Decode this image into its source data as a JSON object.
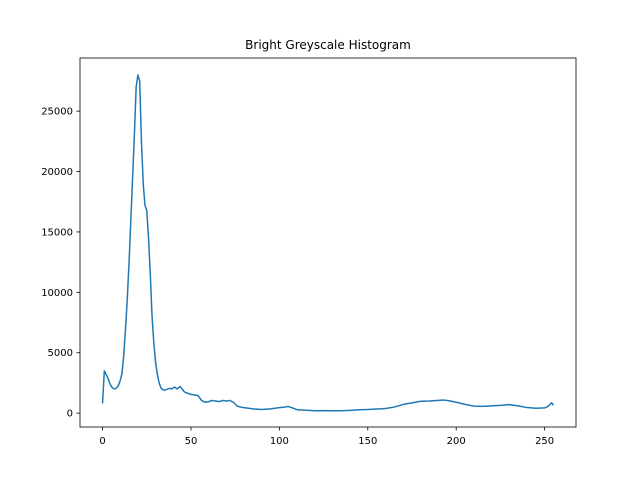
{
  "chart_data": {
    "type": "line",
    "title": "Bright Greyscale Histogram",
    "xlabel": "",
    "ylabel": "",
    "xlim": [
      -12.75,
      267.75
    ],
    "ylim": [
      -1150,
      29400
    ],
    "xticks": [
      0,
      50,
      100,
      150,
      200,
      250
    ],
    "yticks": [
      0,
      5000,
      10000,
      15000,
      20000,
      25000
    ],
    "grid": false,
    "legend": "none",
    "colors": {
      "line": "#1f77b4",
      "axes": "#000000",
      "background": "#ffffff"
    },
    "series": [
      {
        "x": [
          0,
          1,
          2,
          3,
          4,
          5,
          6,
          7,
          8,
          9,
          10,
          11,
          12,
          13,
          14,
          15,
          16,
          17,
          18,
          19,
          20,
          21,
          22,
          23,
          24,
          25,
          26,
          27,
          28,
          29,
          30,
          31,
          32,
          33,
          34,
          35,
          36,
          37,
          38,
          39,
          40,
          41,
          42,
          43,
          44,
          45,
          46,
          47,
          48,
          49,
          50,
          52,
          54,
          56,
          58,
          60,
          62,
          64,
          66,
          68,
          70,
          72,
          74,
          76,
          78,
          80,
          85,
          90,
          95,
          100,
          103,
          105,
          108,
          110,
          115,
          120,
          125,
          130,
          135,
          140,
          145,
          150,
          155,
          160,
          165,
          170,
          175,
          180,
          185,
          190,
          193,
          196,
          200,
          205,
          210,
          215,
          220,
          225,
          230,
          235,
          240,
          245,
          250,
          252,
          253,
          254,
          255
        ],
        "values": [
          800,
          3500,
          3200,
          2900,
          2500,
          2200,
          2050,
          2000,
          2100,
          2300,
          2700,
          3300,
          4800,
          7000,
          9500,
          12500,
          16000,
          19500,
          23000,
          27000,
          28000,
          27500,
          22500,
          19000,
          17200,
          16800,
          14500,
          11500,
          8000,
          5800,
          4200,
          3200,
          2500,
          2100,
          1950,
          1900,
          1950,
          2000,
          2050,
          2000,
          2100,
          2150,
          2000,
          2100,
          2200,
          2000,
          1800,
          1700,
          1650,
          1600,
          1550,
          1500,
          1450,
          1050,
          900,
          950,
          1050,
          1000,
          950,
          1050,
          1000,
          1050,
          900,
          600,
          500,
          450,
          350,
          300,
          350,
          450,
          500,
          550,
          400,
          280,
          240,
          200,
          210,
          200,
          190,
          230,
          280,
          300,
          340,
          380,
          500,
          720,
          850,
          980,
          1000,
          1050,
          1080,
          1020,
          900,
          720,
          580,
          560,
          600,
          640,
          700,
          600,
          460,
          400,
          430,
          560,
          720,
          850,
          650
        ]
      }
    ]
  }
}
